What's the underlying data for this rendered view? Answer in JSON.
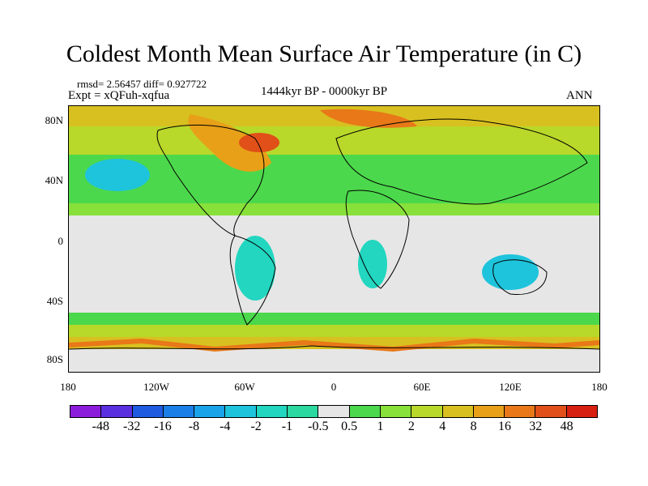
{
  "title": "Coldest Month Mean Surface Air Temperature (in C)",
  "stats": "rmsd= 2.56457 diff= 0.927722",
  "experiment": "Expt = xQFuh-xqfua",
  "period": "1444kyr BP - 0000kyr BP",
  "season": "ANN",
  "lat_labels": [
    "80N",
    "40N",
    "0",
    "40S",
    "80S"
  ],
  "lon_labels": [
    "180",
    "120W",
    "60W",
    "0",
    "60E",
    "120E",
    "180"
  ],
  "colorbar": {
    "labels": [
      "-48",
      "-32",
      "-16",
      "-8",
      "-4",
      "-2",
      "-1",
      "-0.5",
      "0.5",
      "1",
      "2",
      "4",
      "8",
      "16",
      "32",
      "48"
    ],
    "colors": [
      "#8c1cdc",
      "#5a2fe0",
      "#1e5be0",
      "#1a7fe6",
      "#1aa3e8",
      "#1ec4dc",
      "#22d6c0",
      "#2ad8a0",
      "#e6e6e6",
      "#4cd84c",
      "#88e03a",
      "#b8d82a",
      "#d8c020",
      "#e8a018",
      "#e87818",
      "#e05018",
      "#d82010"
    ]
  }
}
